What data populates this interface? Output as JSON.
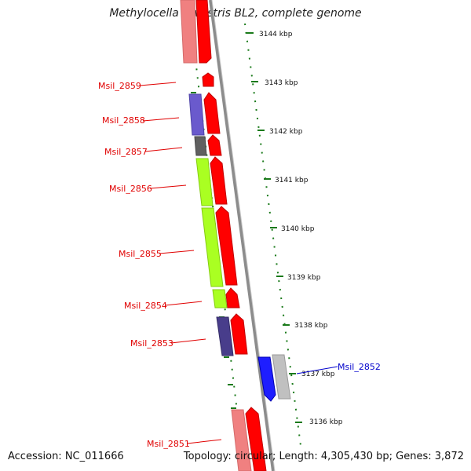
{
  "title": "Methylocella silvestris BL2, complete genome",
  "footer": {
    "accession": "Accession: NC_011666",
    "summary": "Topology: circular; Length: 4,305,430 bp; Genes: 3,872"
  },
  "colors": {
    "background": "#ffffff",
    "backbone": "#8c8c8c",
    "tick": "#1a7a1a",
    "red_gene": "#ff0000",
    "pink_gene": "#f08080",
    "blue_gene": "#1e1eff",
    "grey_gene": "#c0c0c0",
    "purple_gene": "#6a5acd",
    "green_gene": "#aaff22",
    "darkgrey_gene": "#606060",
    "navy_gene": "#483d8b",
    "label_red": "#e00000",
    "label_blue": "#0000cc"
  },
  "kbp_labels": [
    "3144 kbp",
    "3143 kbp",
    "3142 kbp",
    "3141 kbp",
    "3140 kbp",
    "3139 kbp",
    "3138 kbp",
    "3137 kbp",
    "3136 kbp"
  ],
  "gene_labels": [
    {
      "text": "Msil_2859",
      "color": "#e00000"
    },
    {
      "text": "Msil_2858",
      "color": "#e00000"
    },
    {
      "text": "Msil_2857",
      "color": "#e00000"
    },
    {
      "text": "Msil_2856",
      "color": "#e00000"
    },
    {
      "text": "Msil_2855",
      "color": "#e00000"
    },
    {
      "text": "Msil_2854",
      "color": "#e00000"
    },
    {
      "text": "Msil_2853",
      "color": "#e00000"
    },
    {
      "text": "Msil_2852",
      "color": "#0000cc"
    },
    {
      "text": "Msil_2851",
      "color": "#e00000"
    }
  ]
}
